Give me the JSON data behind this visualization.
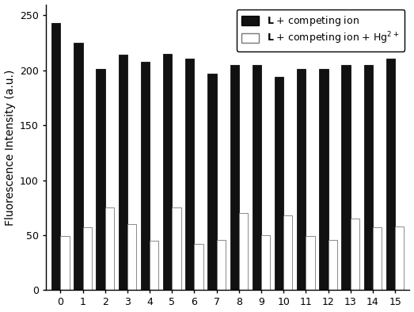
{
  "categories": [
    0,
    1,
    2,
    3,
    4,
    5,
    6,
    7,
    8,
    9,
    10,
    11,
    12,
    13,
    14,
    15
  ],
  "black_bars": [
    243,
    225,
    201,
    214,
    208,
    215,
    211,
    197,
    205,
    205,
    194,
    201,
    201,
    205,
    205,
    211
  ],
  "white_bars": [
    49,
    57,
    75,
    60,
    45,
    75,
    42,
    46,
    70,
    50,
    68,
    49,
    46,
    65,
    57,
    58
  ],
  "ylabel": "Fluorescence Intensity (a.u.)",
  "ylim": [
    0,
    260
  ],
  "yticks": [
    0,
    50,
    100,
    150,
    200,
    250
  ],
  "legend_black": "$\\mathbf{L}$ + competing ion",
  "legend_white": "$\\mathbf{L}$ + competing ion + Hg$^{2+}$",
  "bar_width": 0.4,
  "black_color": "#111111",
  "white_color": "#ffffff",
  "white_edge_color": "#777777",
  "background_color": "#ffffff",
  "figure_bg": "#ffffff"
}
